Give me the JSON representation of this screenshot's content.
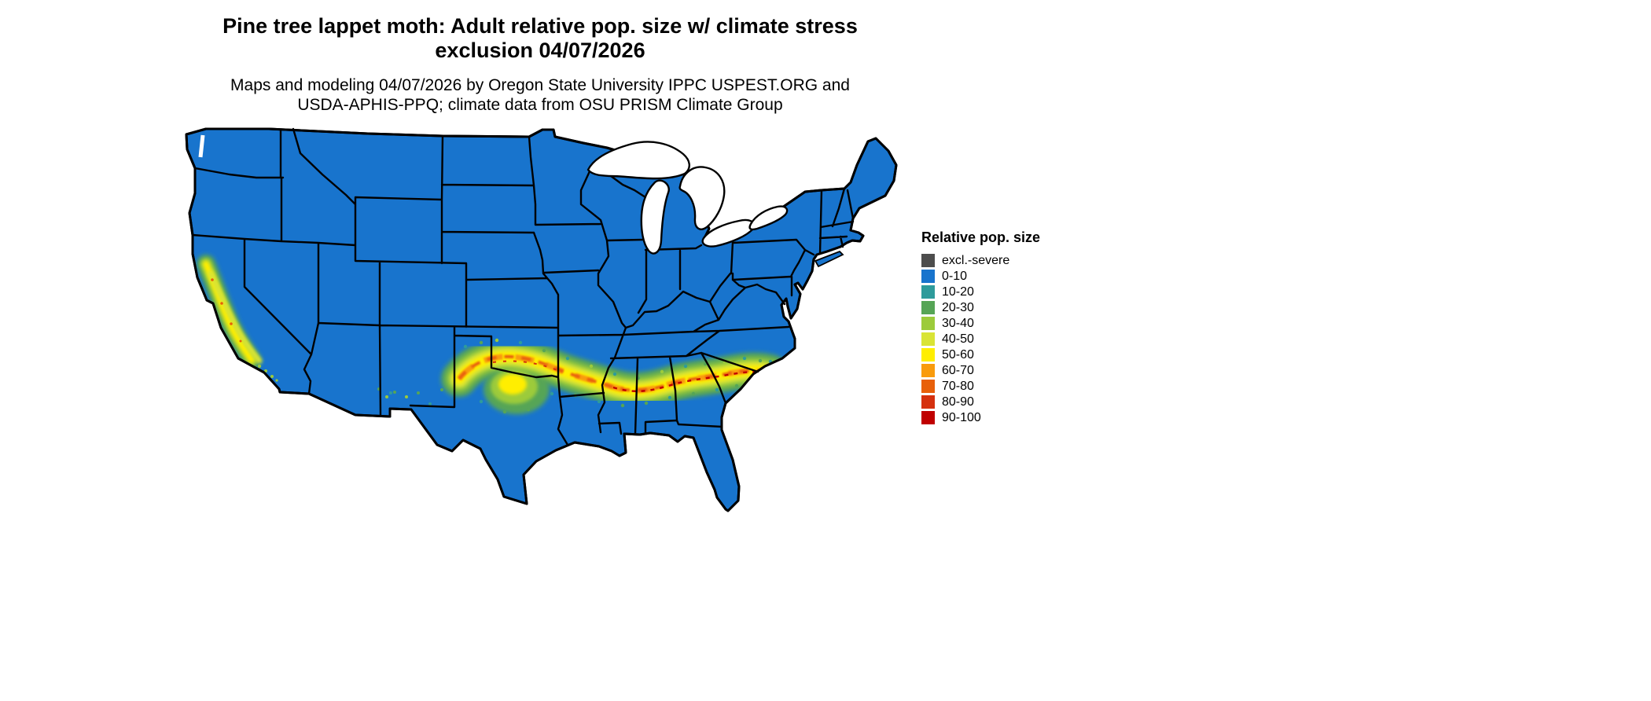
{
  "title": {
    "line1": "Pine tree lappet moth: Adult relative pop. size w/ climate stress",
    "line2": "exclusion 04/07/2026"
  },
  "subtitle": {
    "line1": "Maps and modeling 04/07/2026 by Oregon State University IPPC USPEST.ORG and",
    "line2": "USDA-APHIS-PPQ; climate data from OSU PRISM Climate Group"
  },
  "legend": {
    "title": "Relative pop. size",
    "entries": [
      {
        "label": "excl.-severe",
        "color": "#4d4d4d"
      },
      {
        "label": "0-10",
        "color": "#1874cd"
      },
      {
        "label": "10-20",
        "color": "#2e9b9b"
      },
      {
        "label": "20-30",
        "color": "#56a556"
      },
      {
        "label": "30-40",
        "color": "#9ccb3b"
      },
      {
        "label": "40-50",
        "color": "#d9e436"
      },
      {
        "label": "50-60",
        "color": "#ffee00"
      },
      {
        "label": "60-70",
        "color": "#f99b0c"
      },
      {
        "label": "70-80",
        "color": "#e8600a"
      },
      {
        "label": "80-90",
        "color": "#d5310e"
      },
      {
        "label": "90-100",
        "color": "#c00000"
      }
    ]
  },
  "palette": {
    "gray": "#4d4d4d",
    "blue": "#1874cd",
    "teal": "#2e9b9b",
    "green": "#56a556",
    "yellowgreen": "#9ccb3b",
    "lightyellowgreen": "#d9e436",
    "yellow": "#ffee00",
    "amber": "#f99b0c",
    "orange": "#e8600a",
    "redorange": "#d5310e",
    "red": "#c00000",
    "border": "#000000",
    "water": "#ffffff"
  },
  "map": {
    "region": "Conterminous United States with state borders",
    "base_class": "0-10",
    "high_regions": [
      "California Central Valley and coast ranges",
      "Band from central Texas and Oklahoma across the Gulf South to the Carolinas coast"
    ]
  }
}
